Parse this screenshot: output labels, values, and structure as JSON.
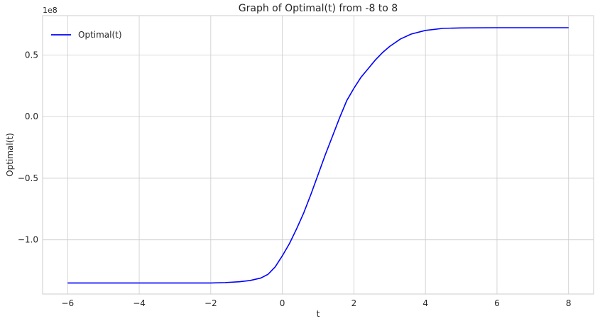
{
  "chart_data": {
    "type": "line",
    "title": "Graph of Optimal(t) from -8 to 8",
    "xlabel": "t",
    "ylabel": "Optimal(t)",
    "y_offset_text": "1e8",
    "xlim": [
      -6.7,
      8.7
    ],
    "ylim": [
      -1.44,
      0.82
    ],
    "x_ticks": [
      -6,
      -4,
      -2,
      0,
      2,
      4,
      6,
      8
    ],
    "x_tick_labels": [
      "−6",
      "−4",
      "−2",
      "0",
      "2",
      "4",
      "6",
      "8"
    ],
    "y_ticks": [
      -1.0,
      -0.5,
      0.0,
      0.5
    ],
    "y_tick_labels": [
      "−1.0",
      "−0.5",
      "0.0",
      "0.5"
    ],
    "grid": true,
    "legend_position": "top-left",
    "series": [
      {
        "name": "Optimal(t)",
        "color": "#0000ff",
        "x": [
          -6,
          -4,
          -2,
          -1.6,
          -1.2,
          -0.9,
          -0.6,
          -0.4,
          -0.2,
          0,
          0.2,
          0.4,
          0.6,
          0.8,
          1.0,
          1.2,
          1.4,
          1.6,
          1.8,
          2.0,
          2.2,
          2.4,
          2.6,
          2.8,
          3.0,
          3.3,
          3.6,
          4.0,
          4.5,
          5.0,
          6.0,
          7.0,
          8.0
        ],
        "y": [
          -1.35,
          -1.35,
          -1.35,
          -1.347,
          -1.34,
          -1.33,
          -1.31,
          -1.28,
          -1.22,
          -1.13,
          -1.03,
          -0.91,
          -0.78,
          -0.63,
          -0.47,
          -0.31,
          -0.16,
          -0.01,
          0.13,
          0.23,
          0.32,
          0.39,
          0.46,
          0.52,
          0.57,
          0.63,
          0.67,
          0.7,
          0.717,
          0.72,
          0.722,
          0.722,
          0.722
        ]
      }
    ]
  }
}
